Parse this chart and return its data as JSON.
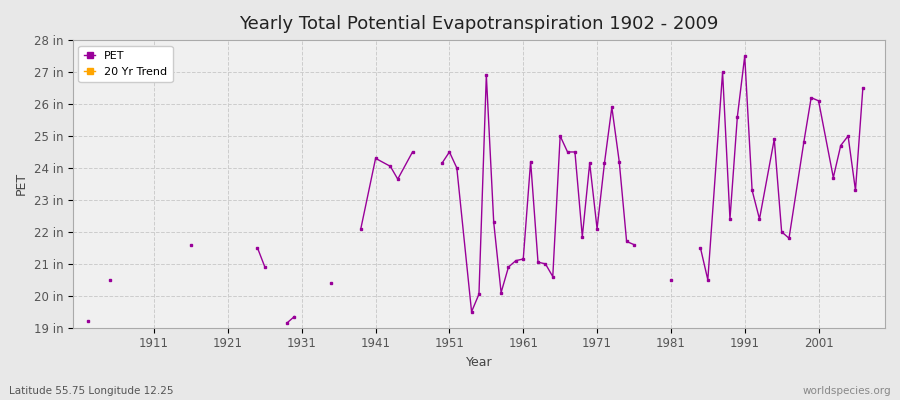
{
  "title": "Yearly Total Potential Evapotranspiration 1902 - 2009",
  "xlabel": "Year",
  "ylabel": "PET",
  "bottom_left_label": "Latitude 55.75 Longitude 12.25",
  "bottom_right_label": "worldspecies.org",
  "ylim": [
    19,
    28
  ],
  "ytick_labels": [
    "19 in",
    "20 in",
    "21 in",
    "22 in",
    "23 in",
    "24 in",
    "25 in",
    "26 in",
    "27 in",
    "28 in"
  ],
  "ytick_values": [
    19,
    20,
    21,
    22,
    23,
    24,
    25,
    26,
    27,
    28
  ],
  "xtick_values": [
    1911,
    1921,
    1931,
    1941,
    1951,
    1961,
    1971,
    1981,
    1991,
    2001
  ],
  "pet_color": "#990099",
  "trend_color": "#FFA500",
  "bg_color": "#e8e8e8",
  "plot_bg_color": "#f0f0f0",
  "legend_entries": [
    "PET",
    "20 Yr Trend"
  ],
  "pet_data": [
    [
      1902,
      19.2
    ],
    [
      1905,
      20.5
    ],
    [
      1916,
      21.6
    ],
    [
      1925,
      21.5
    ],
    [
      1926,
      20.9
    ],
    [
      1929,
      19.15
    ],
    [
      1930,
      19.35
    ],
    [
      1935,
      20.4
    ],
    [
      1939,
      22.1
    ],
    [
      1941,
      24.3
    ],
    [
      1943,
      24.05
    ],
    [
      1944,
      23.65
    ],
    [
      1946,
      24.5
    ],
    [
      1950,
      24.15
    ],
    [
      1951,
      24.5
    ],
    [
      1952,
      24.0
    ],
    [
      1954,
      19.5
    ],
    [
      1955,
      20.05
    ],
    [
      1956,
      26.9
    ],
    [
      1957,
      22.3
    ],
    [
      1958,
      20.1
    ],
    [
      1959,
      20.9
    ],
    [
      1960,
      21.1
    ],
    [
      1961,
      21.15
    ],
    [
      1962,
      24.2
    ],
    [
      1963,
      21.05
    ],
    [
      1964,
      21.0
    ],
    [
      1965,
      20.6
    ],
    [
      1966,
      25.0
    ],
    [
      1967,
      24.5
    ],
    [
      1968,
      24.5
    ],
    [
      1969,
      21.85
    ],
    [
      1970,
      24.15
    ],
    [
      1971,
      22.1
    ],
    [
      1972,
      24.15
    ],
    [
      1973,
      25.9
    ],
    [
      1974,
      24.2
    ],
    [
      1975,
      21.7
    ],
    [
      1976,
      21.6
    ],
    [
      1981,
      20.5
    ],
    [
      1985,
      21.5
    ],
    [
      1986,
      20.5
    ],
    [
      1988,
      27.0
    ],
    [
      1989,
      22.4
    ],
    [
      1990,
      25.6
    ],
    [
      1991,
      27.5
    ],
    [
      1992,
      23.3
    ],
    [
      1993,
      22.4
    ],
    [
      1995,
      24.9
    ],
    [
      1996,
      22.0
    ],
    [
      1997,
      21.8
    ],
    [
      1999,
      24.8
    ],
    [
      2000,
      26.2
    ],
    [
      2001,
      26.1
    ],
    [
      2003,
      23.7
    ],
    [
      2004,
      24.7
    ],
    [
      2005,
      25.0
    ],
    [
      2006,
      23.3
    ],
    [
      2007,
      26.5
    ]
  ]
}
